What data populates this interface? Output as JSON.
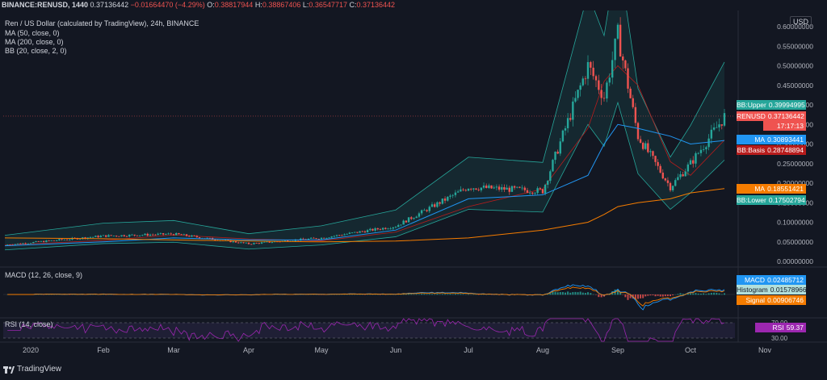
{
  "header": {
    "symbol": "BINANCE:RENUSD, 1440",
    "last": "0.37136442",
    "change": "−0.01664470 (−4.29%)",
    "o_label": "O:",
    "o": "0.38817944",
    "h_label": "H:",
    "h": "0.38867406",
    "l_label": "L:",
    "l": "0.36547717",
    "c_label": "C:",
    "c": "0.37136442"
  },
  "legend": {
    "title": "Ren / US Dollar (calculated by TradingView), 24h, BINANCE",
    "ma50": "MA (50, close, 0)",
    "ma200": "MA (200, close, 0)",
    "bb": "BB (20, close, 2, 0)",
    "macd": "MACD (12, 26, close, 9)",
    "rsi": "RSI (14, close)"
  },
  "currency": "USD",
  "price_tags": [
    {
      "label": "BB:Upper",
      "value": "0.39994995",
      "color": "#26a69a",
      "price": 0.39994995
    },
    {
      "label": "RENUSD",
      "value": "0.37136442",
      "color": "#ef5350",
      "price": 0.37136442
    },
    {
      "label": "",
      "value": "17:17:13",
      "color": "#ef5350",
      "price": 0.355
    },
    {
      "label": "MA",
      "value": "0.30893441",
      "color": "#2196f3",
      "price": 0.30893441
    },
    {
      "label": "BB:Basis",
      "value": "0.28748894",
      "color": "#b71c1c",
      "price": 0.28748894
    },
    {
      "label": "MA",
      "value": "0.18551421",
      "color": "#f57c00",
      "price": 0.18551421
    },
    {
      "label": "BB:Lower",
      "value": "0.17502794",
      "color": "#26a69a",
      "price": 0.17502794
    }
  ],
  "macd_tags": [
    {
      "label": "MACD",
      "value": "0.02485712",
      "color": "#2196f3"
    },
    {
      "label": "Histogram",
      "value": "0.01578966",
      "color": "#b2dfdb",
      "dark": true
    },
    {
      "label": "Signal",
      "value": "0.00906746",
      "color": "#f57c00"
    }
  ],
  "rsi_tag": {
    "label": "RSI",
    "value": "59.37",
    "color": "#9c27b0"
  },
  "y_ticks": [
    "0.60000000",
    "0.55000000",
    "0.50000000",
    "0.45000000",
    "0.40000000",
    "0.35000000",
    "0.30000000",
    "0.25000000",
    "0.20000000",
    "0.15000000",
    "0.10000000",
    "0.05000000",
    "0.00000000"
  ],
  "rsi_ticks": [
    "70.00",
    "30.00"
  ],
  "x_ticks": [
    "2020",
    "Feb",
    "Mar",
    "Apr",
    "May",
    "Jun",
    "Jul",
    "Aug",
    "Sep",
    "Oct",
    "Nov"
  ],
  "brand": "TradingView",
  "chart_data": {
    "type": "line",
    "title": "Ren / US Dollar (calculated by TradingView), 24h, BINANCE",
    "x": [
      "2020-01",
      "2020-02",
      "2020-03",
      "2020-04",
      "2020-05",
      "2020-06",
      "2020-07",
      "2020-08",
      "2020-08-15",
      "2020-08-25",
      "2020-09",
      "2020-09-08",
      "2020-09-20",
      "2020-10",
      "2020-10-10"
    ],
    "ylim": [
      0,
      0.62
    ],
    "series": [
      {
        "name": "RENUSD",
        "values": [
          0.042,
          0.065,
          0.07,
          0.045,
          0.06,
          0.09,
          0.19,
          0.18,
          0.5,
          0.42,
          0.58,
          0.32,
          0.19,
          0.25,
          0.37
        ]
      },
      {
        "name": "MA",
        "values": [
          0.04,
          0.05,
          0.06,
          0.055,
          0.055,
          0.08,
          0.16,
          0.17,
          0.22,
          0.3,
          0.35,
          0.34,
          0.32,
          0.3,
          0.309
        ]
      },
      {
        "name": "MA",
        "values": [
          0.06,
          0.058,
          0.055,
          0.052,
          0.05,
          0.052,
          0.06,
          0.08,
          0.1,
          0.12,
          0.14,
          0.15,
          0.16,
          0.175,
          0.186
        ]
      }
    ]
  }
}
